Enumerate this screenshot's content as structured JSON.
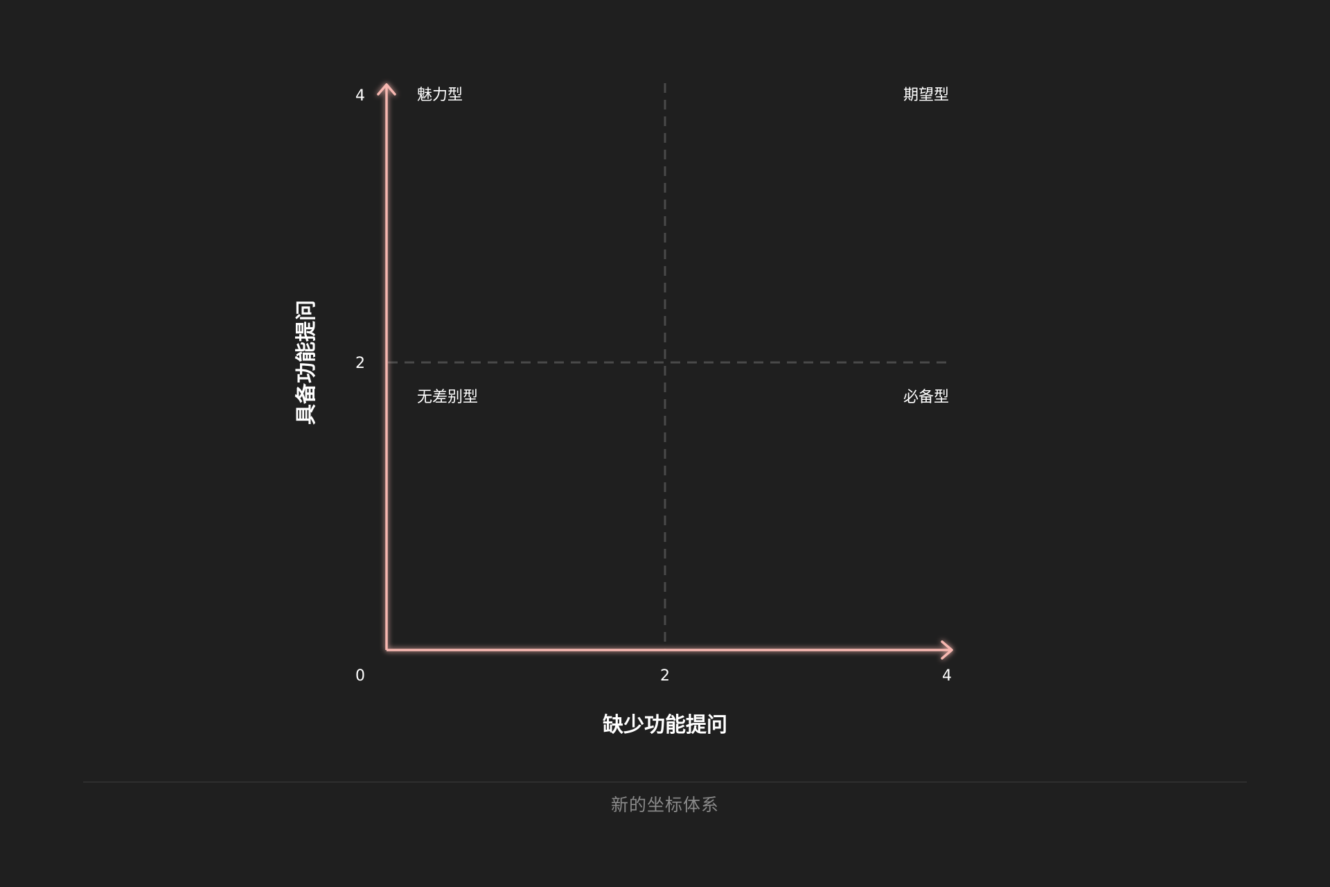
{
  "axes": {
    "x_title": "缺少功能提问",
    "y_title": "具备功能提问",
    "x_ticks": [
      "0",
      "2",
      "4"
    ],
    "y_ticks": [
      "4",
      "2"
    ],
    "range": [
      0,
      4
    ],
    "midpoint": 2
  },
  "quadrants": {
    "top_left": "魅力型",
    "top_right": "期望型",
    "bottom_left": "无差别型",
    "bottom_right": "必备型"
  },
  "caption": "新的坐标体系",
  "colors": {
    "background": "#1f1f1f",
    "axis": "#f7b7b0",
    "divider_dashes": "#4a4a4a",
    "caption": "#8a8a8a"
  }
}
